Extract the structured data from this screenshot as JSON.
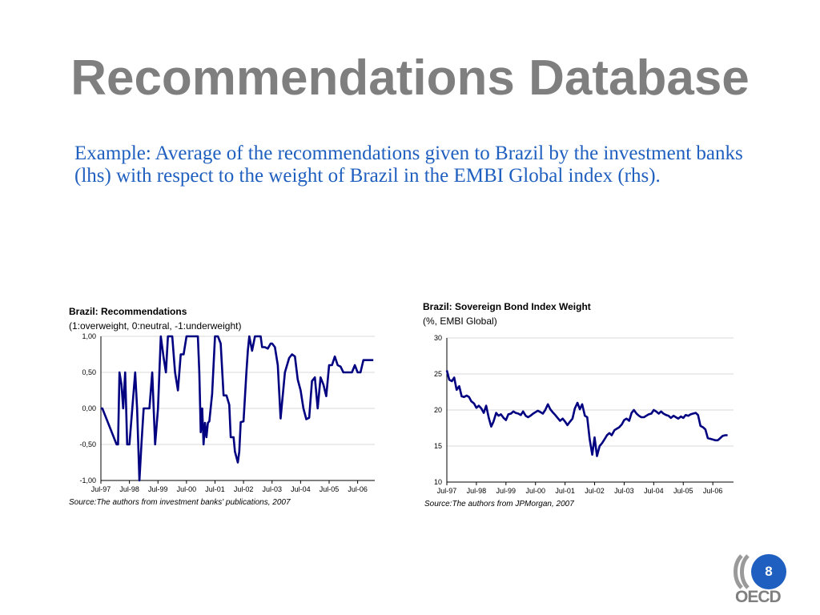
{
  "slide": {
    "title": "Recommendations Database",
    "subtitle": "Example: Average of the recommendations given to Brazil by the investment banks (lhs) with respect to the weight of Brazil in the EMBI Global index (rhs).",
    "page_number": "8",
    "logo_text": "OECD",
    "colors": {
      "title": "#7f7f7f",
      "subtitle": "#1f5fbf",
      "series": "#000080",
      "badge": "#1f5fbf"
    }
  },
  "chart_data": [
    {
      "type": "line",
      "title": "Brazil: Recommendations",
      "subtitle": "(1:overweight, 0:neutral, -1:underweight)",
      "source": "Source:The authors from investment banks' publications, 2007",
      "ylim": [
        -1,
        1
      ],
      "yticks": [
        "1,00",
        "0,50",
        "0,00",
        "-0,50",
        "-1,00"
      ],
      "ytick_values": [
        1,
        0.5,
        0,
        -0.5,
        -1
      ],
      "xticks": [
        "Jul-97",
        "Jul-98",
        "Jul-99",
        "Jul-00",
        "Jul-01",
        "Jul-02",
        "Jul-03",
        "Jul-04",
        "Jul-05",
        "Jul-06"
      ],
      "xrange": [
        1997.5,
        2007.1
      ],
      "grid": true,
      "series": [
        {
          "x": [
            1997.5,
            1997.55,
            1998.05,
            1998.1,
            1998.15,
            1998.22,
            1998.28,
            1998.35,
            1998.42,
            1998.5,
            1998.6,
            1998.7,
            1998.77,
            1998.85,
            1998.92,
            1999.0,
            1999.1,
            1999.2,
            1999.3,
            1999.4,
            1999.5,
            1999.6,
            1999.7,
            1999.78,
            1999.85,
            1999.9,
            2000.0,
            2000.1,
            2000.2,
            2000.3,
            2000.4,
            2000.5,
            2000.6,
            2000.8,
            2000.9,
            2000.95,
            2001.0,
            2001.05,
            2001.1,
            2001.15,
            2001.2,
            2001.25,
            2001.3,
            2001.4,
            2001.5,
            2001.6,
            2001.7,
            2001.8,
            2001.9,
            2002.0,
            2002.05,
            2002.1,
            2002.15,
            2002.2,
            2002.3,
            2002.35,
            2002.4,
            2002.5,
            2002.6,
            2002.65,
            2002.7,
            2002.8,
            2002.9,
            2003.0,
            2003.1,
            2003.15,
            2003.25,
            2003.35,
            2003.45,
            2003.5,
            2003.6,
            2003.7,
            2003.8,
            2003.95,
            2004.1,
            2004.2,
            2004.3,
            2004.4,
            2004.5,
            2004.6,
            2004.7,
            2004.8,
            2004.9,
            2005.0,
            2005.1,
            2005.2,
            2005.3,
            2005.4,
            2005.5,
            2005.6,
            2005.7,
            2005.8,
            2005.9,
            2006.0,
            2006.1,
            2006.2,
            2006.3,
            2006.4,
            2006.5,
            2006.6,
            2006.7,
            2006.8,
            2006.9,
            2007.0,
            2007.05
          ],
          "y": [
            0.0,
            0.0,
            -0.5,
            -0.5,
            0.5,
            0.33,
            0.0,
            0.5,
            -0.5,
            -0.5,
            0.0,
            0.5,
            0.0,
            -1.0,
            -0.5,
            0.0,
            0.0,
            0.0,
            0.5,
            -0.5,
            0.0,
            1.0,
            0.7,
            0.5,
            1.0,
            1.0,
            1.0,
            0.5,
            0.25,
            0.75,
            0.75,
            1.0,
            1.0,
            1.0,
            1.0,
            0.5,
            -0.33,
            0.0,
            -0.5,
            -0.2,
            -0.4,
            -0.2,
            -0.18,
            0.2,
            1.0,
            1.0,
            0.9,
            0.18,
            0.18,
            0.05,
            -0.4,
            -0.4,
            -0.4,
            -0.6,
            -0.75,
            -0.6,
            -0.19,
            -0.18,
            0.5,
            0.8,
            1.0,
            0.8,
            1.0,
            1.0,
            1.0,
            0.85,
            0.85,
            0.83,
            0.9,
            0.9,
            0.85,
            0.6,
            -0.14,
            0.5,
            0.7,
            0.75,
            0.72,
            0.4,
            0.25,
            0.0,
            -0.15,
            -0.13,
            0.38,
            0.43,
            0.0,
            0.43,
            0.33,
            0.17,
            0.6,
            0.6,
            0.72,
            0.6,
            0.58,
            0.5,
            0.5,
            0.5,
            0.5,
            0.6,
            0.5,
            0.5,
            0.67,
            0.67,
            0.67,
            0.67,
            0.67
          ]
        }
      ]
    },
    {
      "type": "line",
      "title": "Brazil: Sovereign Bond Index Weight",
      "subtitle": "(%, EMBI Global)",
      "source": "Source:The authors from JPMorgan, 2007",
      "ylim": [
        10,
        30
      ],
      "yticks": [
        "30",
        "25",
        "20",
        "15",
        "10"
      ],
      "ytick_values": [
        30,
        25,
        20,
        15,
        10
      ],
      "xticks": [
        "Jul-97",
        "Jul-98",
        "Jul-99",
        "Jul-00",
        "Jul-01",
        "Jul-02",
        "Jul-03",
        "Jul-04",
        "Jul-05",
        "Jul-06"
      ],
      "xrange": [
        1997.5,
        2007.2
      ],
      "grid": true,
      "series": [
        {
          "x": [
            1997.5,
            1997.58,
            1997.67,
            1997.75,
            1997.83,
            1997.92,
            1998.0,
            1998.08,
            1998.17,
            1998.25,
            1998.33,
            1998.42,
            1998.5,
            1998.58,
            1998.67,
            1998.75,
            1998.83,
            1998.92,
            1999.0,
            1999.08,
            1999.17,
            1999.25,
            1999.33,
            1999.42,
            1999.5,
            1999.58,
            1999.67,
            1999.75,
            1999.83,
            1999.92,
            2000.0,
            2000.08,
            2000.17,
            2000.25,
            2000.33,
            2000.42,
            2000.5,
            2000.58,
            2000.67,
            2000.75,
            2000.83,
            2000.92,
            2001.0,
            2001.08,
            2001.17,
            2001.25,
            2001.33,
            2001.42,
            2001.5,
            2001.58,
            2001.67,
            2001.75,
            2001.83,
            2001.92,
            2002.0,
            2002.08,
            2002.17,
            2002.25,
            2002.33,
            2002.42,
            2002.5,
            2002.58,
            2002.67,
            2002.75,
            2002.83,
            2002.92,
            2003.0,
            2003.08,
            2003.17,
            2003.25,
            2003.33,
            2003.42,
            2003.5,
            2003.58,
            2003.67,
            2003.75,
            2003.83,
            2003.92,
            2004.0,
            2004.08,
            2004.17,
            2004.25,
            2004.33,
            2004.42,
            2004.5,
            2004.58,
            2004.67,
            2004.75,
            2004.83,
            2004.92,
            2005.0,
            2005.08,
            2005.17,
            2005.25,
            2005.33,
            2005.42,
            2005.5,
            2005.58,
            2005.67,
            2005.75,
            2005.83,
            2005.92,
            2006.0,
            2006.08,
            2006.17,
            2006.25,
            2006.33,
            2006.42,
            2006.5,
            2006.58,
            2006.67,
            2006.75,
            2006.83,
            2006.92,
            2007.0
          ],
          "y": [
            25.5,
            24.2,
            24.0,
            24.5,
            22.8,
            23.3,
            21.9,
            21.8,
            22.0,
            21.8,
            21.2,
            20.9,
            20.3,
            20.6,
            20.2,
            19.6,
            20.6,
            18.9,
            17.7,
            18.4,
            19.6,
            19.2,
            19.4,
            18.9,
            18.6,
            19.4,
            19.5,
            19.8,
            19.6,
            19.5,
            19.3,
            19.8,
            19.2,
            19.0,
            19.2,
            19.5,
            19.7,
            19.9,
            19.7,
            19.5,
            20.0,
            20.8,
            20.1,
            19.7,
            19.3,
            18.9,
            18.5,
            18.8,
            18.4,
            17.9,
            18.4,
            18.8,
            20.2,
            21.0,
            20.1,
            20.8,
            19.2,
            19.0,
            16.0,
            13.8,
            16.2,
            13.6,
            15.0,
            15.4,
            15.9,
            16.5,
            16.8,
            16.5,
            17.2,
            17.4,
            17.6,
            18.0,
            18.6,
            18.8,
            18.5,
            19.6,
            20.0,
            19.5,
            19.2,
            19.0,
            19.0,
            19.2,
            19.4,
            19.5,
            20.0,
            19.8,
            19.5,
            19.8,
            19.5,
            19.3,
            19.2,
            18.9,
            19.2,
            19.0,
            18.8,
            19.1,
            18.9,
            19.3,
            19.2,
            19.4,
            19.5,
            19.6,
            19.3,
            17.8,
            17.6,
            17.3,
            16.1,
            16.0,
            15.9,
            15.8,
            15.8,
            16.1,
            16.4,
            16.5,
            16.5
          ]
        }
      ]
    }
  ]
}
